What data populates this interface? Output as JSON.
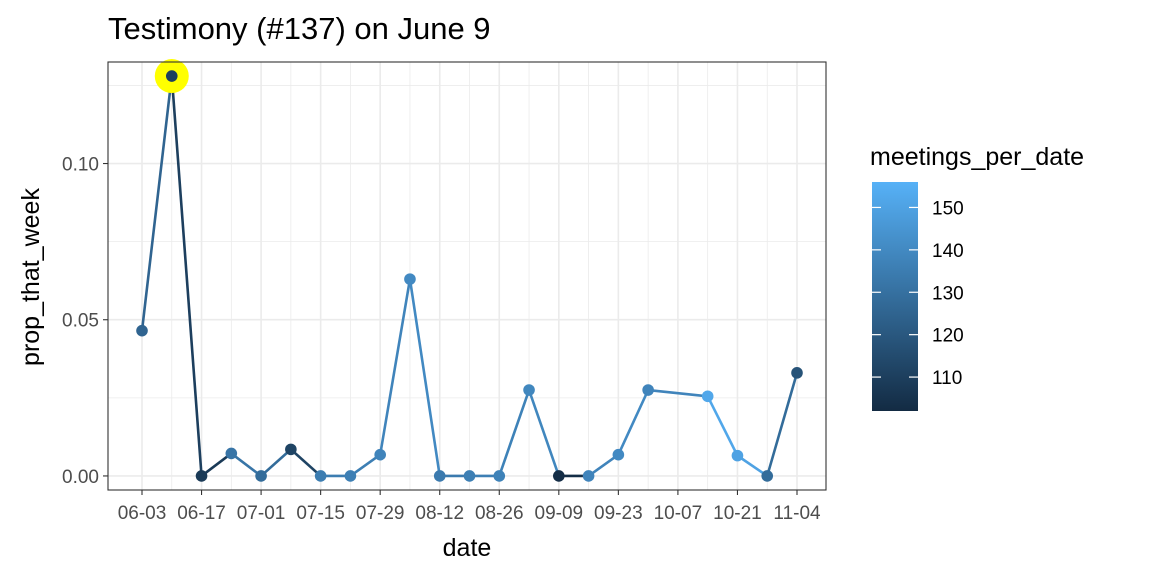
{
  "chart_data": {
    "type": "line",
    "title": "Testimony (#137) on June 9",
    "xlabel": "date",
    "ylabel": "prop_that_week",
    "ylim": [
      -0.0045,
      0.1325
    ],
    "y_ticks": [
      0.0,
      0.05,
      0.1
    ],
    "y_tick_labels": [
      "0.00",
      "0.05",
      "0.10"
    ],
    "x_tick_labels": [
      "06-03",
      "06-17",
      "07-01",
      "07-15",
      "07-29",
      "08-12",
      "08-26",
      "09-09",
      "09-23",
      "10-07",
      "10-21",
      "11-04"
    ],
    "grid": true,
    "legend": {
      "title": "meetings_per_date",
      "position": "right",
      "ticks": [
        110,
        120,
        130,
        140,
        150
      ],
      "range": [
        102,
        156
      ],
      "color_low": "#132B43",
      "color_high": "#56B1F7"
    },
    "highlight": {
      "date": "06-10",
      "color": "#FFFF00"
    },
    "points": [
      {
        "x": "06-03",
        "y": 0.0465,
        "meetings": 125
      },
      {
        "x": "06-10",
        "y": 0.128,
        "meetings": 110
      },
      {
        "x": "06-17",
        "y": 0.0,
        "meetings": 108
      },
      {
        "x": "06-24",
        "y": 0.0072,
        "meetings": 132
      },
      {
        "x": "07-01",
        "y": 0.0,
        "meetings": 128
      },
      {
        "x": "07-08",
        "y": 0.0085,
        "meetings": 112
      },
      {
        "x": "07-15",
        "y": 0.0,
        "meetings": 135
      },
      {
        "x": "07-22",
        "y": 0.0,
        "meetings": 136
      },
      {
        "x": "07-29",
        "y": 0.0068,
        "meetings": 138
      },
      {
        "x": "08-05",
        "y": 0.063,
        "meetings": 140
      },
      {
        "x": "08-12",
        "y": 0.0,
        "meetings": 134
      },
      {
        "x": "08-19",
        "y": 0.0,
        "meetings": 136
      },
      {
        "x": "08-26",
        "y": 0.0,
        "meetings": 137
      },
      {
        "x": "09-02",
        "y": 0.0275,
        "meetings": 139
      },
      {
        "x": "09-09",
        "y": 0.0,
        "meetings": 103
      },
      {
        "x": "09-16",
        "y": 0.0,
        "meetings": 138
      },
      {
        "x": "09-23",
        "y": 0.0068,
        "meetings": 140
      },
      {
        "x": "09-30",
        "y": 0.0275,
        "meetings": 138
      },
      {
        "x": "10-14",
        "y": 0.0255,
        "meetings": 152
      },
      {
        "x": "10-21",
        "y": 0.0065,
        "meetings": 150
      },
      {
        "x": "10-28",
        "y": 0.0,
        "meetings": 128
      },
      {
        "x": "11-04",
        "y": 0.033,
        "meetings": 118
      }
    ]
  }
}
